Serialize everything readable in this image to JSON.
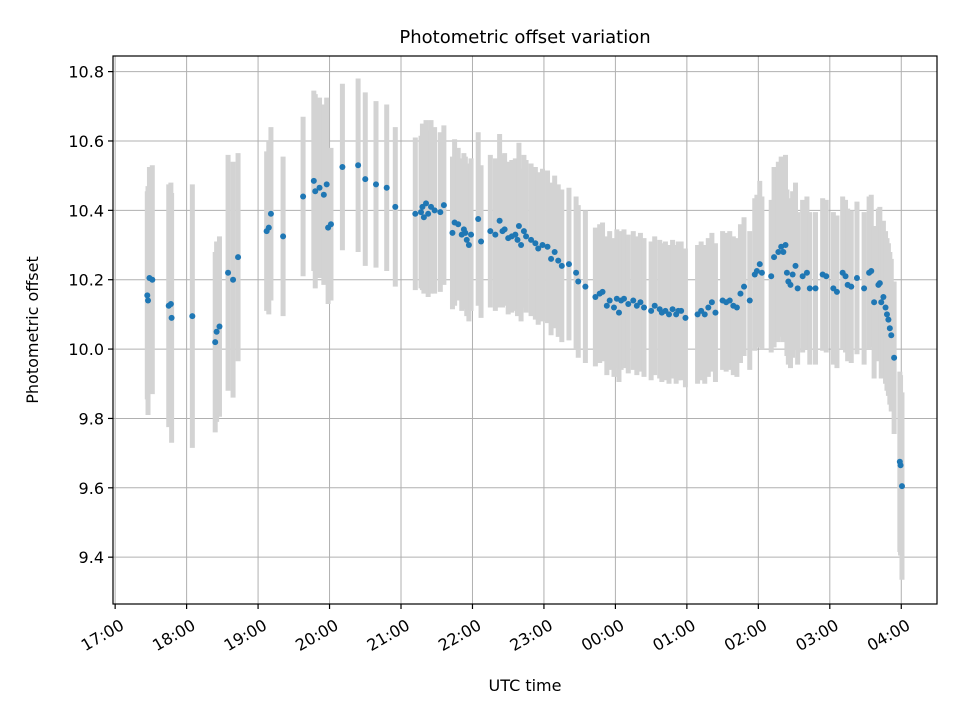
{
  "chart_data": {
    "type": "scatter",
    "title": "Photometric offset variation",
    "xlabel": "UTC time",
    "ylabel": "Photometric offset",
    "x_unit": "hours (UTC, continuing past midnight)",
    "xlim": [
      16.97,
      28.5
    ],
    "ylim": [
      9.265,
      10.845
    ],
    "grid": true,
    "x_ticks": [
      {
        "value": 17,
        "label": "17:00"
      },
      {
        "value": 18,
        "label": "18:00"
      },
      {
        "value": 19,
        "label": "19:00"
      },
      {
        "value": 20,
        "label": "20:00"
      },
      {
        "value": 21,
        "label": "21:00"
      },
      {
        "value": 22,
        "label": "22:00"
      },
      {
        "value": 23,
        "label": "23:00"
      },
      {
        "value": 24,
        "label": "00:00"
      },
      {
        "value": 25,
        "label": "01:00"
      },
      {
        "value": 26,
        "label": "02:00"
      },
      {
        "value": 27,
        "label": "03:00"
      },
      {
        "value": 28,
        "label": "04:00"
      }
    ],
    "y_ticks": [
      {
        "value": 9.4,
        "label": "9.4"
      },
      {
        "value": 9.6,
        "label": "9.6"
      },
      {
        "value": 9.8,
        "label": "9.8"
      },
      {
        "value": 10.0,
        "label": "10.0"
      },
      {
        "value": 10.2,
        "label": "10.2"
      },
      {
        "value": 10.4,
        "label": "10.4"
      },
      {
        "value": 10.6,
        "label": "10.6"
      },
      {
        "value": 10.8,
        "label": "10.8"
      }
    ],
    "series": [
      {
        "color": "#1f77b4",
        "errorbar_color": "#d3d3d3",
        "points": [
          [
            17.45,
            10.155,
            0.3
          ],
          [
            17.46,
            10.14,
            0.33
          ],
          [
            17.48,
            10.205,
            0.32
          ],
          [
            17.52,
            10.2,
            0.33
          ],
          [
            17.75,
            10.125,
            0.35
          ],
          [
            17.78,
            10.13,
            0.35
          ],
          [
            17.79,
            10.09,
            0.36
          ],
          [
            18.08,
            10.095,
            0.38
          ],
          [
            18.4,
            10.02,
            0.26
          ],
          [
            18.42,
            10.05,
            0.26
          ],
          [
            18.46,
            10.065,
            0.26
          ],
          [
            18.58,
            10.22,
            0.34
          ],
          [
            18.65,
            10.2,
            0.34
          ],
          [
            18.72,
            10.265,
            0.3
          ],
          [
            19.12,
            10.34,
            0.23
          ],
          [
            19.15,
            10.35,
            0.25
          ],
          [
            19.18,
            10.39,
            0.25
          ],
          [
            19.35,
            10.325,
            0.23
          ],
          [
            19.63,
            10.44,
            0.23
          ],
          [
            19.78,
            10.485,
            0.26
          ],
          [
            19.8,
            10.455,
            0.28
          ],
          [
            19.86,
            10.465,
            0.26
          ],
          [
            19.92,
            10.445,
            0.26
          ],
          [
            19.96,
            10.475,
            0.25
          ],
          [
            19.98,
            10.35,
            0.22
          ],
          [
            20.02,
            10.36,
            0.22
          ],
          [
            20.18,
            10.525,
            0.24
          ],
          [
            20.4,
            10.53,
            0.25
          ],
          [
            20.5,
            10.49,
            0.25
          ],
          [
            20.65,
            10.475,
            0.24
          ],
          [
            20.8,
            10.465,
            0.24
          ],
          [
            20.92,
            10.41,
            0.23
          ],
          [
            21.2,
            10.39,
            0.22
          ],
          [
            21.28,
            10.395,
            0.22
          ],
          [
            21.3,
            10.41,
            0.24
          ],
          [
            21.32,
            10.38,
            0.22
          ],
          [
            21.35,
            10.42,
            0.24
          ],
          [
            21.38,
            10.39,
            0.24
          ],
          [
            21.42,
            10.41,
            0.25
          ],
          [
            21.47,
            10.4,
            0.24
          ],
          [
            21.55,
            10.395,
            0.23
          ],
          [
            21.6,
            10.415,
            0.23
          ],
          [
            21.72,
            10.335,
            0.22
          ],
          [
            21.75,
            10.365,
            0.24
          ],
          [
            21.8,
            10.36,
            0.22
          ],
          [
            21.85,
            10.33,
            0.22
          ],
          [
            21.88,
            10.345,
            0.22
          ],
          [
            21.9,
            10.335,
            0.22
          ],
          [
            21.92,
            10.315,
            0.22
          ],
          [
            21.95,
            10.3,
            0.22
          ],
          [
            21.98,
            10.33,
            0.22
          ],
          [
            22.08,
            10.375,
            0.25
          ],
          [
            22.12,
            10.31,
            0.22
          ],
          [
            22.25,
            10.34,
            0.22
          ],
          [
            22.32,
            10.33,
            0.22
          ],
          [
            22.38,
            10.37,
            0.25
          ],
          [
            22.42,
            10.34,
            0.22
          ],
          [
            22.45,
            10.345,
            0.22
          ],
          [
            22.5,
            10.32,
            0.22
          ],
          [
            22.55,
            10.325,
            0.22
          ],
          [
            22.6,
            10.33,
            0.22
          ],
          [
            22.63,
            10.315,
            0.22
          ],
          [
            22.65,
            10.355,
            0.24
          ],
          [
            22.68,
            10.3,
            0.22
          ],
          [
            22.72,
            10.34,
            0.22
          ],
          [
            22.75,
            10.325,
            0.22
          ],
          [
            22.82,
            10.315,
            0.22
          ],
          [
            22.88,
            10.305,
            0.22
          ],
          [
            22.92,
            10.29,
            0.22
          ],
          [
            22.98,
            10.3,
            0.22
          ],
          [
            23.05,
            10.295,
            0.22
          ],
          [
            23.1,
            10.26,
            0.22
          ],
          [
            23.15,
            10.28,
            0.22
          ],
          [
            23.2,
            10.255,
            0.22
          ],
          [
            23.25,
            10.24,
            0.22
          ],
          [
            23.35,
            10.245,
            0.22
          ],
          [
            23.45,
            10.22,
            0.22
          ],
          [
            23.48,
            10.195,
            0.22
          ],
          [
            23.58,
            10.18,
            0.22
          ],
          [
            23.72,
            10.15,
            0.2
          ],
          [
            23.78,
            10.16,
            0.2
          ],
          [
            23.82,
            10.165,
            0.2
          ],
          [
            23.88,
            10.125,
            0.2
          ],
          [
            23.92,
            10.14,
            0.2
          ],
          [
            23.98,
            10.12,
            0.2
          ],
          [
            24.02,
            10.145,
            0.2
          ],
          [
            24.05,
            10.105,
            0.2
          ],
          [
            24.08,
            10.14,
            0.2
          ],
          [
            24.12,
            10.145,
            0.2
          ],
          [
            24.18,
            10.13,
            0.2
          ],
          [
            24.25,
            10.14,
            0.2
          ],
          [
            24.3,
            10.125,
            0.2
          ],
          [
            24.35,
            10.135,
            0.2
          ],
          [
            24.4,
            10.12,
            0.2
          ],
          [
            24.5,
            10.11,
            0.2
          ],
          [
            24.55,
            10.125,
            0.2
          ],
          [
            24.62,
            10.115,
            0.2
          ],
          [
            24.65,
            10.105,
            0.2
          ],
          [
            24.7,
            10.11,
            0.2
          ],
          [
            24.75,
            10.1,
            0.2
          ],
          [
            24.8,
            10.115,
            0.2
          ],
          [
            24.85,
            10.1,
            0.2
          ],
          [
            24.88,
            10.11,
            0.2
          ],
          [
            24.92,
            10.11,
            0.2
          ],
          [
            24.98,
            10.09,
            0.2
          ],
          [
            25.15,
            10.1,
            0.2
          ],
          [
            25.2,
            10.11,
            0.2
          ],
          [
            25.25,
            10.1,
            0.2
          ],
          [
            25.3,
            10.12,
            0.2
          ],
          [
            25.35,
            10.135,
            0.2
          ],
          [
            25.4,
            10.105,
            0.2
          ],
          [
            25.5,
            10.14,
            0.2
          ],
          [
            25.55,
            10.135,
            0.2
          ],
          [
            25.6,
            10.14,
            0.2
          ],
          [
            25.65,
            10.125,
            0.2
          ],
          [
            25.7,
            10.12,
            0.2
          ],
          [
            25.75,
            10.16,
            0.2
          ],
          [
            25.8,
            10.18,
            0.2
          ],
          [
            25.88,
            10.14,
            0.2
          ],
          [
            25.95,
            10.215,
            0.22
          ],
          [
            25.98,
            10.225,
            0.22
          ],
          [
            26.02,
            10.245,
            0.24
          ],
          [
            26.05,
            10.22,
            0.22
          ],
          [
            26.18,
            10.21,
            0.22
          ],
          [
            26.22,
            10.265,
            0.26
          ],
          [
            26.28,
            10.28,
            0.26
          ],
          [
            26.32,
            10.295,
            0.26
          ],
          [
            26.35,
            10.28,
            0.26
          ],
          [
            26.38,
            10.3,
            0.26
          ],
          [
            26.4,
            10.22,
            0.24
          ],
          [
            26.42,
            10.195,
            0.24
          ],
          [
            26.45,
            10.185,
            0.24
          ],
          [
            26.48,
            10.215,
            0.24
          ],
          [
            26.52,
            10.24,
            0.24
          ],
          [
            26.55,
            10.175,
            0.22
          ],
          [
            26.62,
            10.21,
            0.22
          ],
          [
            26.68,
            10.22,
            0.22
          ],
          [
            26.72,
            10.175,
            0.22
          ],
          [
            26.8,
            10.175,
            0.22
          ],
          [
            26.9,
            10.215,
            0.22
          ],
          [
            26.95,
            10.21,
            0.22
          ],
          [
            27.05,
            10.175,
            0.22
          ],
          [
            27.1,
            10.165,
            0.22
          ],
          [
            27.18,
            10.22,
            0.22
          ],
          [
            27.22,
            10.21,
            0.22
          ],
          [
            27.25,
            10.185,
            0.22
          ],
          [
            27.3,
            10.18,
            0.22
          ],
          [
            27.38,
            10.205,
            0.22
          ],
          [
            27.48,
            10.175,
            0.22
          ],
          [
            27.55,
            10.22,
            0.22
          ],
          [
            27.58,
            10.225,
            0.22
          ],
          [
            27.62,
            10.135,
            0.22
          ],
          [
            27.68,
            10.185,
            0.22
          ],
          [
            27.7,
            10.19,
            0.22
          ],
          [
            27.72,
            10.135,
            0.22
          ],
          [
            27.75,
            10.15,
            0.22
          ],
          [
            27.78,
            10.12,
            0.22
          ],
          [
            27.8,
            10.1,
            0.22
          ],
          [
            27.82,
            10.085,
            0.22
          ],
          [
            27.84,
            10.06,
            0.22
          ],
          [
            27.86,
            10.04,
            0.22
          ],
          [
            27.9,
            9.975,
            0.22
          ],
          [
            27.98,
            9.675,
            0.26
          ],
          [
            27.99,
            9.665,
            0.26
          ],
          [
            28.01,
            9.605,
            0.27
          ]
        ]
      }
    ]
  }
}
